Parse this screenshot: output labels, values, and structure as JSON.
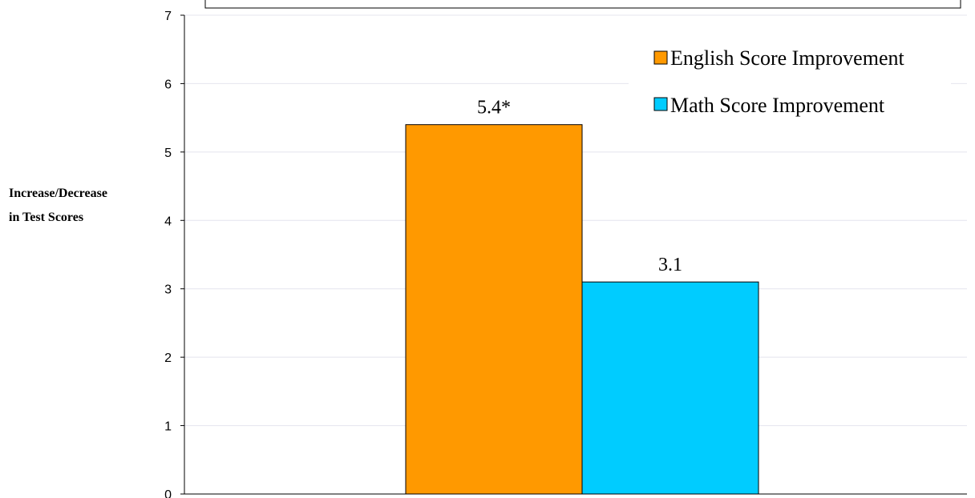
{
  "chart_data": {
    "type": "bar",
    "categories": [
      ""
    ],
    "series": [
      {
        "name": "English Score Improvement",
        "values": [
          5.4
        ],
        "label": "5.4*",
        "color": "#FF9900"
      },
      {
        "name": "Math Score Improvement",
        "values": [
          3.1
        ],
        "label": "3.1",
        "color": "#00CCFF"
      }
    ],
    "ylabel_lines": [
      "Increase/Decrease",
      "in Test Scores"
    ],
    "ylim": [
      0,
      7
    ],
    "yticks": [
      "0",
      "1",
      "2",
      "3",
      "4",
      "5",
      "6",
      "7"
    ],
    "grid": true,
    "legend": "top-right"
  }
}
